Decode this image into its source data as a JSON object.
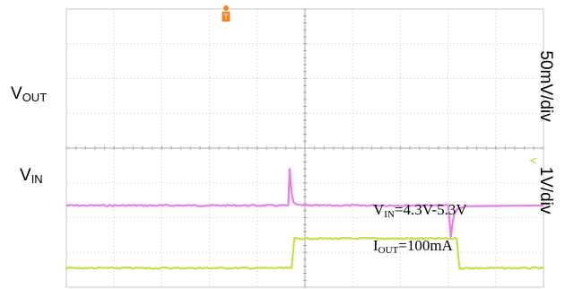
{
  "chart_data": {
    "type": "line",
    "grid": true,
    "grid_divisions": {
      "x": 10,
      "y": 8
    },
    "trigger_marker": "T",
    "channel_labels": {
      "vout_main": "V",
      "vout_sub": "OUT",
      "vin_main": "V",
      "vin_sub": "IN"
    },
    "scale_labels": {
      "vout": "50mV/div",
      "vin": "1V/div"
    },
    "annotations": {
      "line1_main": "V",
      "line1_sub": "IN",
      "line1_rest": "=4.3V-5.3V",
      "line2_main": "I",
      "line2_sub": "OUT",
      "line2_rest": "=100mA"
    },
    "series": [
      {
        "name": "VOUT",
        "color": "#e87ee8",
        "x_div": [
          0,
          4.65,
          4.68,
          4.72,
          4.76,
          4.82,
          5.0,
          8.0,
          8.06,
          8.09,
          8.13,
          8.2,
          8.4,
          10
        ],
        "y_div": [
          2.35,
          2.35,
          3.4,
          2.7,
          2.45,
          2.38,
          2.35,
          2.35,
          1.45,
          1.8,
          2.1,
          2.25,
          2.33,
          2.35
        ]
      },
      {
        "name": "VIN",
        "color": "#c4e04a",
        "x_div": [
          0,
          4.72,
          4.78,
          8.18,
          8.24,
          10
        ],
        "y_div": [
          0.55,
          0.55,
          1.4,
          1.4,
          0.55,
          0.55
        ]
      }
    ],
    "colors": {
      "vout": "#e87ee8",
      "vin": "#c4e04a",
      "trigger": "#ff7f1e",
      "grid": "#c8c8c8",
      "center_axis": "#a8a8a8"
    }
  }
}
